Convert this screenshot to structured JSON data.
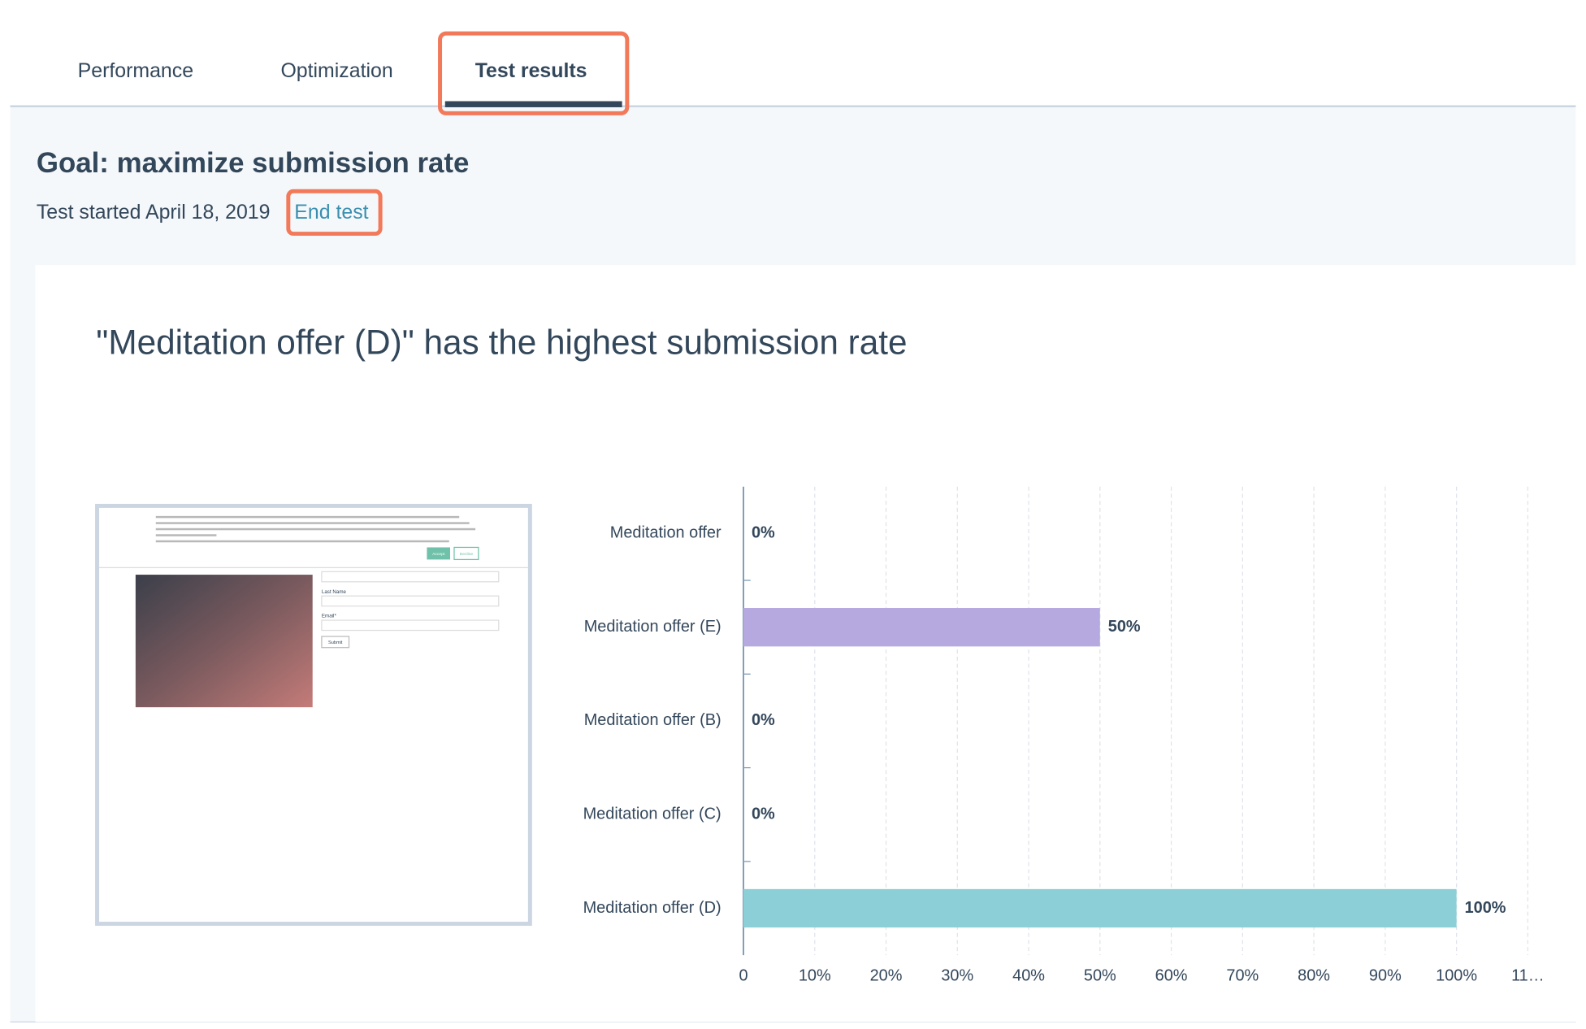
{
  "tabs": [
    {
      "label": "Performance",
      "active": false
    },
    {
      "label": "Optimization",
      "active": false
    },
    {
      "label": "Test results",
      "active": true
    }
  ],
  "goal": "Goal: maximize submission rate",
  "test_started": "Test started April 18, 2019",
  "end_test": "End test",
  "card_title": "\"Meditation offer (D)\" has the highest submission rate",
  "preview": {
    "buttons": [
      "Accept",
      "Decline"
    ],
    "fields": [
      "Last Name",
      "Email*"
    ],
    "submit": "Submit"
  },
  "chart_data": {
    "type": "bar",
    "orientation": "horizontal",
    "categories": [
      "Meditation offer",
      "Meditation offer (E)",
      "Meditation offer (B)",
      "Meditation offer (C)",
      "Meditation offer (D)"
    ],
    "values": [
      0,
      50,
      0,
      0,
      100
    ],
    "value_labels": [
      "0%",
      "50%",
      "0%",
      "0%",
      "100%"
    ],
    "colors": [
      "#b6a9e0",
      "#b6a9e0",
      "#b6a9e0",
      "#8ccfd6",
      "#8ccfd6"
    ],
    "xlim": [
      0,
      110
    ],
    "xticks": [
      0,
      {
        "value": 10,
        "label": "10%"
      },
      {
        "value": 20,
        "label": "20%"
      },
      {
        "value": 30,
        "label": "30%"
      },
      {
        "value": 40,
        "label": "40%"
      },
      {
        "value": 50,
        "label": "50%"
      },
      {
        "value": 60,
        "label": "60%"
      },
      {
        "value": 70,
        "label": "70%"
      },
      {
        "value": 80,
        "label": "80%"
      },
      {
        "value": 90,
        "label": "90%"
      },
      {
        "value": 100,
        "label": "100%"
      },
      {
        "value": 110,
        "label": "11…"
      }
    ],
    "grid": true
  }
}
